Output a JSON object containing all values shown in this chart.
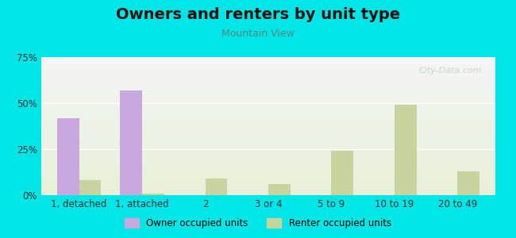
{
  "title": "Owners and renters by unit type",
  "subtitle": "Mountain View",
  "categories": [
    "1, detached",
    "1, attached",
    "2",
    "3 or 4",
    "5 to 9",
    "10 to 19",
    "20 to 49"
  ],
  "owner_values": [
    42,
    57,
    0,
    0,
    0,
    0,
    0
  ],
  "renter_values": [
    8,
    1,
    9,
    6,
    24,
    49,
    13
  ],
  "owner_color": "#c9a8e0",
  "renter_color": "#c8d4a0",
  "ylim": [
    0,
    75
  ],
  "yticks": [
    0,
    25,
    50,
    75
  ],
  "ytick_labels": [
    "0%",
    "25%",
    "50%",
    "75%"
  ],
  "bar_width": 0.35,
  "background_color": "#00e5e5",
  "plot_bg_top": "#f5f5f5",
  "plot_bg_bottom": "#e8f0d8",
  "watermark": "City-Data.com",
  "legend_owner": "Owner occupied units",
  "legend_renter": "Renter occupied units"
}
